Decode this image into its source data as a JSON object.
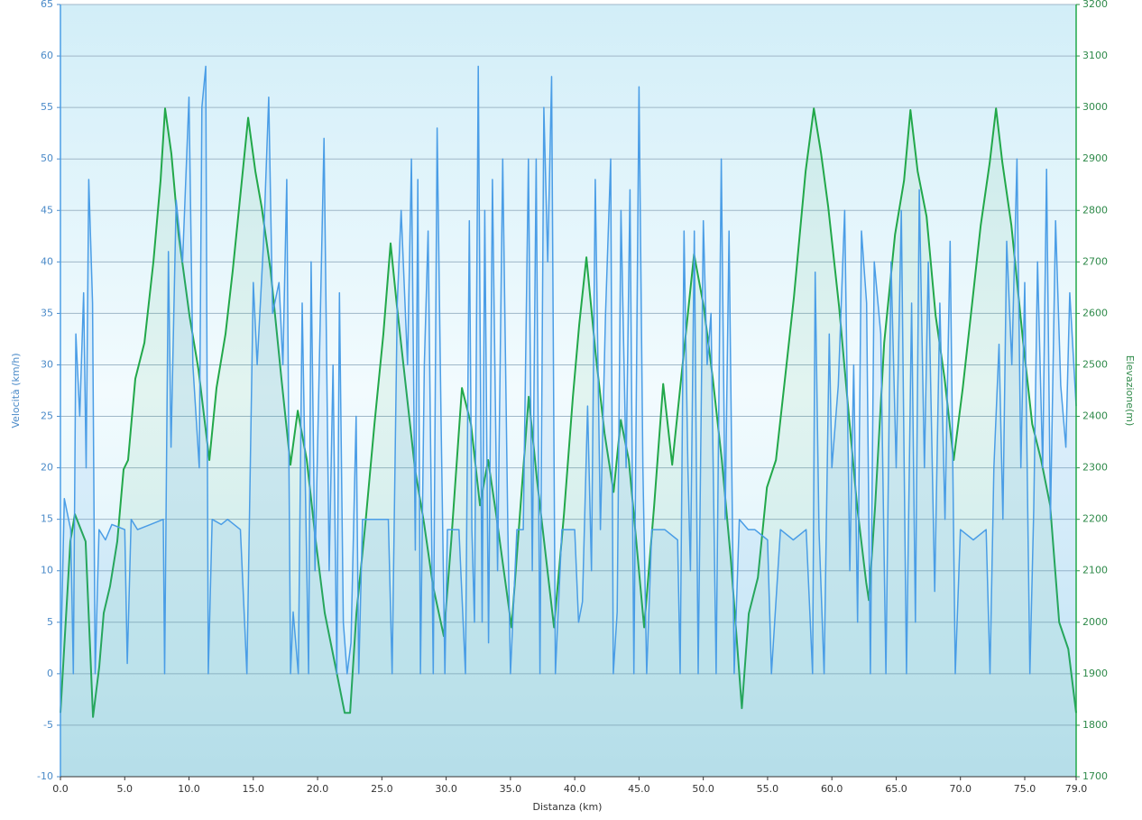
{
  "chart_data": {
    "type": "line",
    "x_label": "Distanza  (km)",
    "y_label": "Velocità (km/h)",
    "y2_label": "Elevazione(m)",
    "xlim": [
      0,
      79
    ],
    "xticks": [
      {
        "value": 0,
        "label": "0.0"
      },
      {
        "value": 5,
        "label": "5.0"
      },
      {
        "value": 10,
        "label": "10.0"
      },
      {
        "value": 15,
        "label": "15.0"
      },
      {
        "value": 20,
        "label": "20.0"
      },
      {
        "value": 25,
        "label": "25.0"
      },
      {
        "value": 30,
        "label": "30.0"
      },
      {
        "value": 35,
        "label": "35.0"
      },
      {
        "value": 40,
        "label": "40.0"
      },
      {
        "value": 45,
        "label": "45.0"
      },
      {
        "value": 50,
        "label": "50.0"
      },
      {
        "value": 55,
        "label": "55.0"
      },
      {
        "value": 60,
        "label": "60.0"
      },
      {
        "value": 65,
        "label": "65.0"
      },
      {
        "value": 70,
        "label": "70.0"
      },
      {
        "value": 75,
        "label": "75.0"
      },
      {
        "value": 79,
        "label": "79.0"
      }
    ],
    "ylim": [
      -10,
      65
    ],
    "yticks": [
      -10,
      -5,
      0,
      5,
      10,
      15,
      20,
      25,
      30,
      35,
      40,
      45,
      50,
      55,
      60,
      65
    ],
    "y2lim": [
      1700,
      3200
    ],
    "y2ticks": [
      1700,
      1800,
      1900,
      2000,
      2100,
      2200,
      2300,
      2400,
      2500,
      2600,
      2700,
      2800,
      2900,
      3000,
      3100,
      3200
    ],
    "grid": true,
    "series": [
      {
        "name": "Velocità",
        "color": "#4a9de6",
        "axis": "y",
        "x": [
          0,
          0.3,
          0.8,
          1,
          1.2,
          1.5,
          1.8,
          2,
          2.2,
          2.5,
          2.7,
          3,
          3.5,
          4,
          5,
          5.2,
          5.5,
          6,
          7,
          8,
          8.1,
          8.4,
          8.6,
          9,
          9.5,
          10,
          10.3,
          10.8,
          11,
          11.3,
          11.5,
          11.8,
          12.5,
          13,
          14,
          14.5,
          15,
          15.3,
          15.8,
          16.2,
          16.5,
          17,
          17.3,
          17.6,
          17.9,
          18.1,
          18.5,
          18.8,
          19.3,
          19.5,
          19.8,
          20.5,
          20.9,
          21.2,
          21.5,
          21.7,
          22,
          22.3,
          22.6,
          23,
          23.2,
          23.5,
          24.5,
          25.5,
          25.8,
          26.2,
          26.5,
          27,
          27.3,
          27.6,
          27.8,
          28,
          28.3,
          28.6,
          29,
          29.3,
          29.6,
          29.9,
          30.1,
          31,
          31.5,
          31.8,
          32,
          32.2,
          32.5,
          32.8,
          33,
          33.3,
          33.6,
          34,
          34.4,
          34.8,
          35,
          35.5,
          36,
          36.4,
          36.7,
          37,
          37.3,
          37.6,
          37.9,
          38.2,
          38.5,
          39,
          40,
          40.3,
          40.6,
          41,
          41.3,
          41.6,
          42,
          42.4,
          42.8,
          43,
          43.3,
          43.6,
          44,
          44.3,
          44.6,
          45,
          45.3,
          45.6,
          46,
          47,
          48,
          48.2,
          48.5,
          48.8,
          49,
          49.3,
          49.6,
          50,
          50.3,
          50.6,
          51,
          51.4,
          51.7,
          52,
          52.4,
          52.8,
          53.5,
          54,
          55,
          55.3,
          56,
          57,
          58,
          58.5,
          58.7,
          59,
          59.4,
          59.8,
          60,
          60.5,
          61,
          61.4,
          61.7,
          62,
          62.3,
          62.7,
          63,
          63.3,
          63.8,
          64.2,
          64.6,
          65,
          65.4,
          65.8,
          66.2,
          66.5,
          66.8,
          67.2,
          67.5,
          68,
          68.4,
          68.8,
          69.2,
          69.6,
          70,
          71,
          72,
          72.3,
          72.6,
          73,
          73.3,
          73.6,
          74,
          74.4,
          74.7,
          75,
          75.4,
          75.7,
          76,
          76.4,
          76.7,
          77,
          77.4,
          77.8,
          78.2,
          78.5,
          79
        ],
        "values": [
          0,
          17,
          14,
          0,
          33,
          25,
          37,
          20,
          48,
          36,
          0,
          14,
          13,
          14.5,
          14,
          1,
          15,
          14,
          14.5,
          15,
          0,
          41,
          22,
          46,
          40,
          56,
          30,
          20,
          55,
          59,
          0,
          15,
          14.5,
          15,
          14,
          0,
          38,
          30,
          42,
          56,
          35,
          38,
          30,
          48,
          0,
          6,
          0,
          36,
          0,
          40,
          10,
          52,
          10,
          30,
          0,
          37,
          5,
          0,
          3,
          25,
          0,
          15,
          15,
          15,
          0,
          36,
          45,
          30,
          50,
          12,
          48,
          0,
          30,
          43,
          0,
          53,
          25,
          0,
          14,
          14,
          0,
          44,
          14,
          5,
          59,
          5,
          45,
          3,
          48,
          10,
          50,
          14,
          0,
          14,
          14,
          50,
          10,
          50,
          0,
          55,
          40,
          58,
          0,
          14,
          14,
          5,
          7,
          26,
          10,
          48,
          14,
          35,
          50,
          0,
          6,
          45,
          20,
          47,
          0,
          57,
          20,
          0,
          14,
          14,
          13,
          0,
          43,
          20,
          10,
          43,
          0,
          44,
          30,
          35,
          0,
          50,
          15,
          43,
          0,
          15,
          14,
          14,
          13,
          0,
          14,
          13,
          14,
          0,
          39,
          14,
          0,
          33,
          20,
          28,
          45,
          10,
          30,
          5,
          43,
          36,
          0,
          40,
          33,
          0,
          40,
          20,
          45,
          0,
          36,
          5,
          47,
          20,
          40,
          8,
          36,
          15,
          42,
          0,
          14,
          13,
          14,
          0,
          20,
          32,
          15,
          42,
          30,
          50,
          20,
          38,
          0,
          16,
          40,
          20,
          49,
          15,
          44,
          28,
          22,
          37,
          26
        ]
      },
      {
        "name": "Elevazione",
        "color": "#22a84a",
        "axis": "y2",
        "x": [
          0,
          0.77,
          1.12,
          1.96,
          2.53,
          3.02,
          3.37,
          3.86,
          4.42,
          4.91,
          5.26,
          5.82,
          6.53,
          7.23,
          7.79,
          8.14,
          8.63,
          9.19,
          10.04,
          10.74,
          11.58,
          12.14,
          12.84,
          13.4,
          14.11,
          14.6,
          15.16,
          15.65,
          16.35,
          17.19,
          17.89,
          18.46,
          19.16,
          19.86,
          20.56,
          21.4,
          22.11,
          22.53,
          23.02,
          23.72,
          24.42,
          25.12,
          25.68,
          26.18,
          26.88,
          27.58,
          28.28,
          28.98,
          29.82,
          30.39,
          31.23,
          31.93,
          32.63,
          33.26,
          33.89,
          35.09,
          35.79,
          36.42,
          37.05,
          38.39,
          39.16,
          39.86,
          40.35,
          40.91,
          41.61,
          42.32,
          43.02,
          43.58,
          44.21,
          45.4,
          46.18,
          46.88,
          47.58,
          48.28,
          49.28,
          50.04,
          50.74,
          51.44,
          52.14,
          53,
          53.54,
          54.25,
          54.95,
          55.65,
          56.35,
          57.05,
          57.96,
          58.6,
          59.16,
          59.72,
          60.56,
          61.26,
          61.96,
          62.67,
          62.88,
          63.37,
          64.07,
          64.91,
          65.61,
          66.11,
          66.67,
          67.37,
          68.07,
          68.77,
          69.47,
          70.18,
          70.88,
          71.58,
          72.28,
          72.77,
          73.26,
          73.96,
          74.88,
          75.58,
          76.28,
          76.98,
          77.68,
          78.39,
          79
        ],
        "values": [
          1824,
          2157,
          2210,
          2157,
          1816,
          1913,
          2018,
          2070,
          2157,
          2297,
          2315,
          2473,
          2543,
          2701,
          2858,
          2998,
          2910,
          2753,
          2595,
          2490,
          2315,
          2455,
          2560,
          2683,
          2858,
          2980,
          2876,
          2806,
          2683,
          2473,
          2306,
          2411,
          2315,
          2157,
          2018,
          1913,
          1824,
          1824,
          2017,
          2192,
          2385,
          2560,
          2736,
          2613,
          2455,
          2297,
          2192,
          2070,
          1973,
          2157,
          2455,
          2385,
          2227,
          2315,
          2210,
          1990,
          2227,
          2438,
          2280,
          1990,
          2210,
          2438,
          2578,
          2709,
          2525,
          2367,
          2253,
          2393,
          2315,
          1990,
          2227,
          2463,
          2306,
          2473,
          2715,
          2613,
          2473,
          2315,
          2122,
          1833,
          2017,
          2087,
          2262,
          2315,
          2473,
          2631,
          2876,
          2998,
          2911,
          2806,
          2613,
          2420,
          2227,
          2078,
          2043,
          2227,
          2543,
          2753,
          2858,
          2995,
          2876,
          2788,
          2596,
          2473,
          2315,
          2455,
          2613,
          2771,
          2893,
          2998,
          2893,
          2771,
          2543,
          2385,
          2315,
          2227,
          2000,
          1948,
          1824
        ]
      }
    ]
  }
}
